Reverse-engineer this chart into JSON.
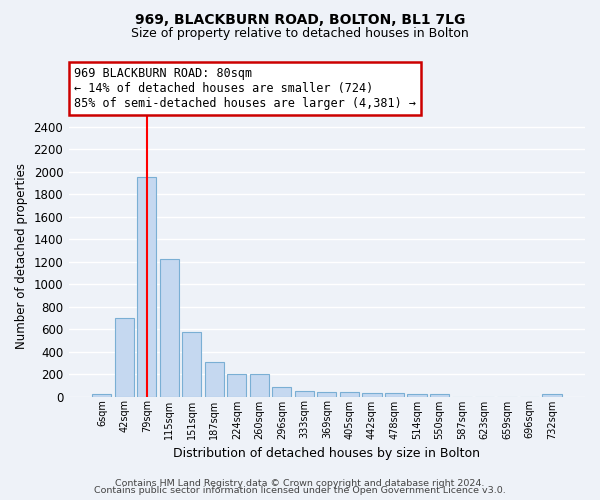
{
  "title1": "969, BLACKBURN ROAD, BOLTON, BL1 7LG",
  "title2": "Size of property relative to detached houses in Bolton",
  "xlabel": "Distribution of detached houses by size in Bolton",
  "ylabel": "Number of detached properties",
  "categories": [
    "6sqm",
    "42sqm",
    "79sqm",
    "115sqm",
    "151sqm",
    "187sqm",
    "224sqm",
    "260sqm",
    "296sqm",
    "333sqm",
    "369sqm",
    "405sqm",
    "442sqm",
    "478sqm",
    "514sqm",
    "550sqm",
    "587sqm",
    "623sqm",
    "659sqm",
    "696sqm",
    "732sqm"
  ],
  "values": [
    20,
    700,
    1950,
    1220,
    575,
    305,
    200,
    200,
    85,
    48,
    40,
    40,
    32,
    32,
    20,
    18,
    0,
    0,
    0,
    0,
    20
  ],
  "bar_color": "#c5d8f0",
  "bar_edge_color": "#7aafd4",
  "red_line_x": 2,
  "annotation_box_text_line1": "969 BLACKBURN ROAD: 80sqm",
  "annotation_box_text_line2": "← 14% of detached houses are smaller (724)",
  "annotation_box_text_line3": "85% of semi-detached houses are larger (4,381) →",
  "ylim": [
    0,
    2500
  ],
  "yticks": [
    0,
    200,
    400,
    600,
    800,
    1000,
    1200,
    1400,
    1600,
    1800,
    2000,
    2200,
    2400
  ],
  "footer1": "Contains HM Land Registry data © Crown copyright and database right 2024.",
  "footer2": "Contains public sector information licensed under the Open Government Licence v3.0.",
  "bg_color": "#eef2f8",
  "plot_bg_color": "#eef2f8",
  "grid_color": "#ffffff",
  "annotation_box_color": "#ffffff",
  "annotation_box_edgecolor": "#cc0000"
}
